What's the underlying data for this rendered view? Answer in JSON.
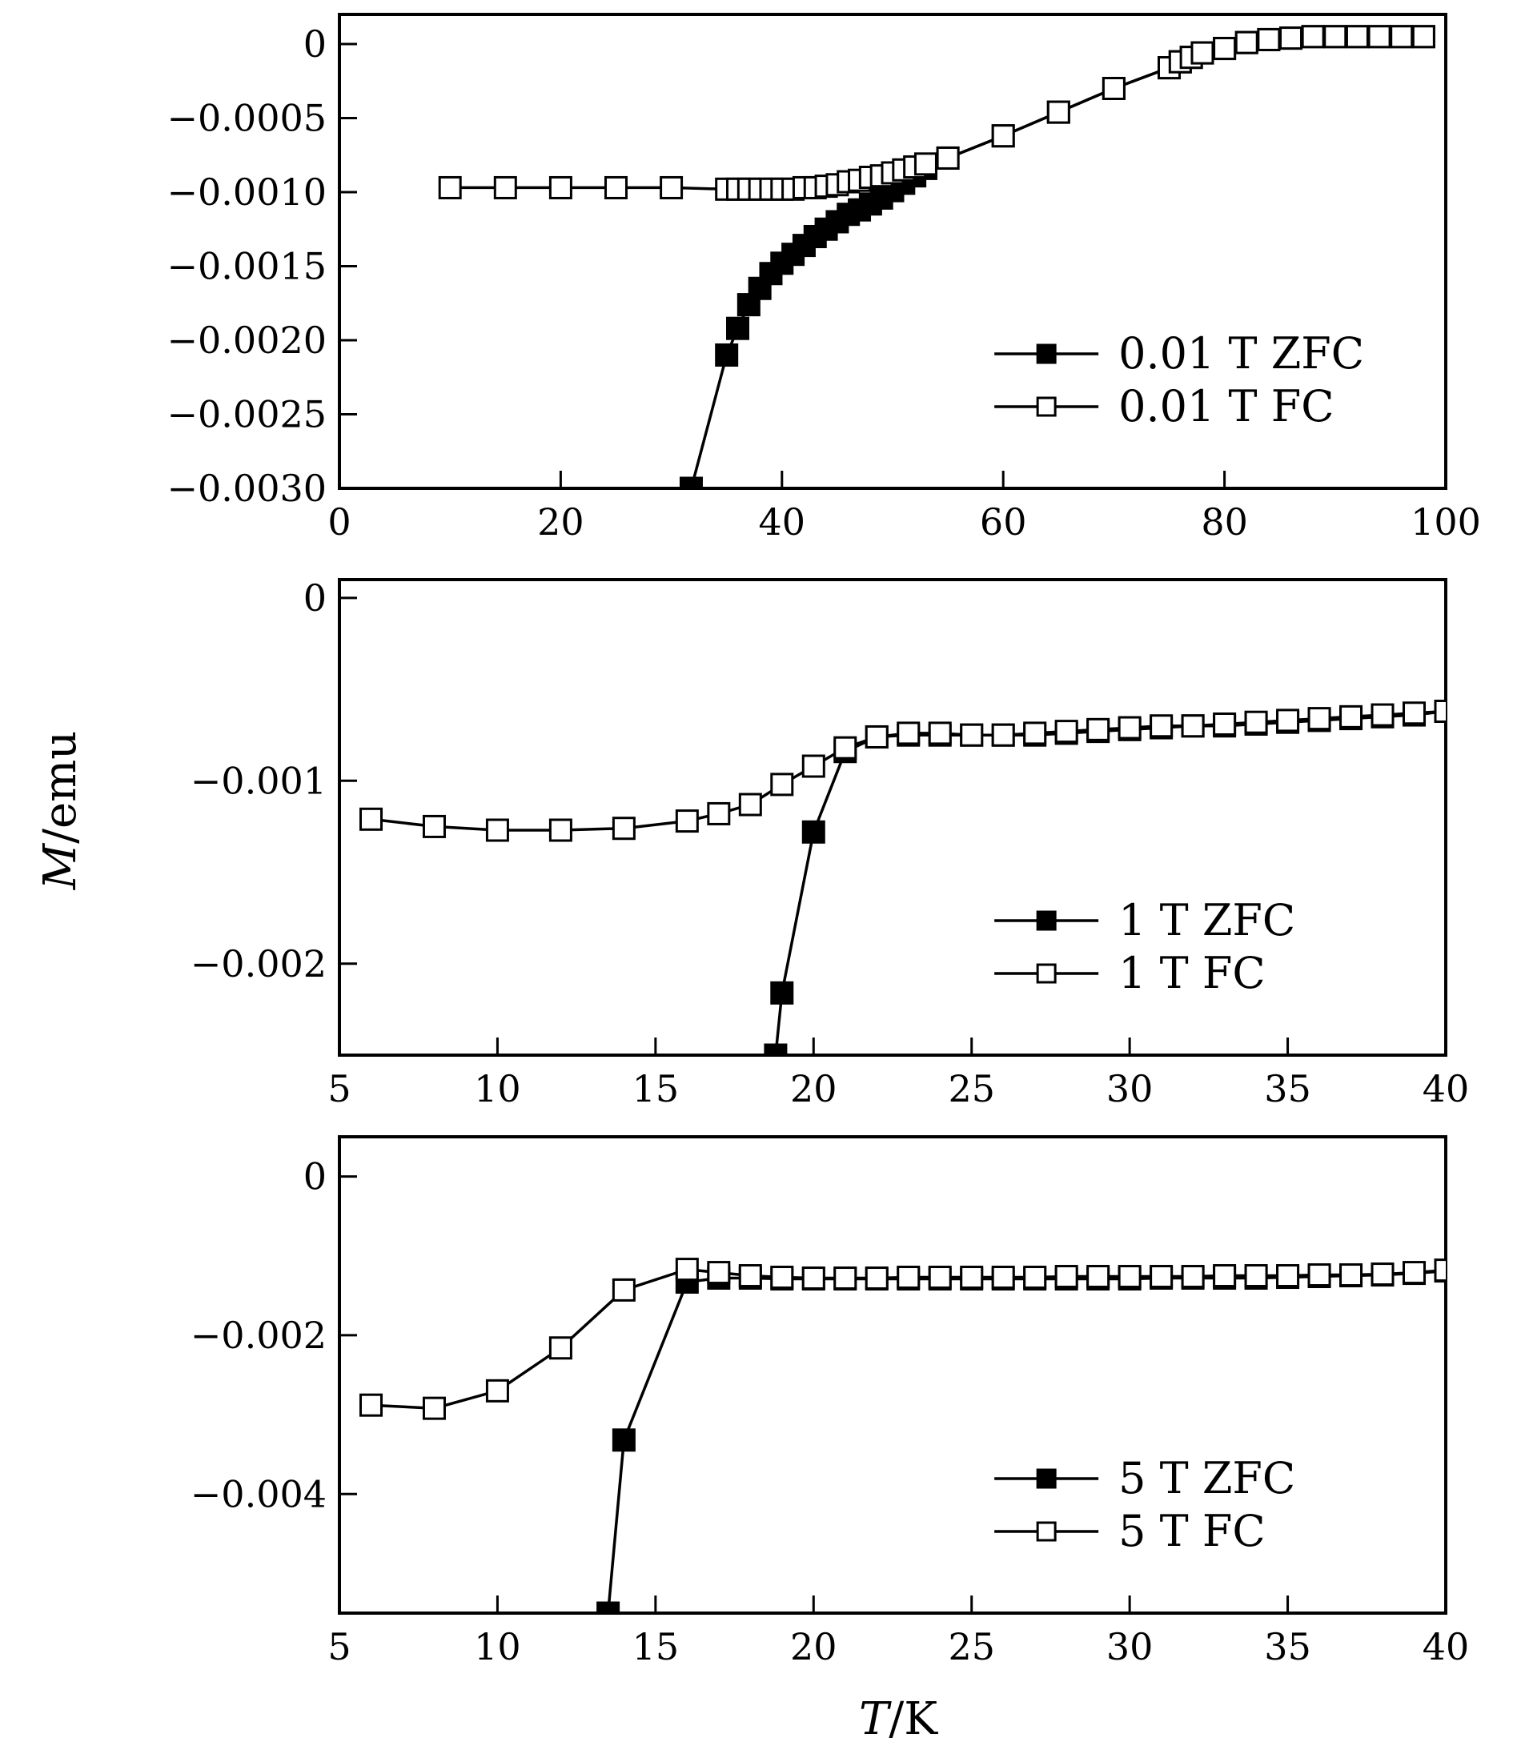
{
  "figure": {
    "xlabel": "T/K",
    "ylabel": "M/emu",
    "colors": {
      "line": "#000000",
      "zfc_marker": "#000000",
      "fc_marker": "#ffffff",
      "background": "#ffffff"
    }
  },
  "chart_data": [
    {
      "type": "line",
      "title": "",
      "xlim": [
        0,
        100
      ],
      "ylim": [
        -0.003,
        0.0002
      ],
      "xticks": [
        0,
        20,
        40,
        60,
        80,
        100
      ],
      "xtick_labels": [
        "0",
        "20",
        "40",
        "60",
        "80",
        "100"
      ],
      "yticks": [
        0,
        -0.0005,
        -0.001,
        -0.0015,
        -0.002,
        -0.0025,
        -0.003
      ],
      "ytick_labels": [
        "0",
        "−0.0005",
        "−0.0010",
        "−0.0015",
        "−0.0020",
        "−0.0025",
        "−0.0030"
      ],
      "legend_position": "lower-right",
      "grid": false,
      "series": [
        {
          "name": "0.01 T ZFC",
          "marker": "filled-square",
          "x": [
            31.8,
            35,
            36,
            37,
            38,
            39,
            40,
            41,
            42,
            43,
            44,
            45,
            46,
            47,
            48,
            49,
            50,
            51,
            52,
            53,
            55,
            60,
            65,
            70,
            75,
            76,
            77,
            78,
            80,
            82,
            84,
            86,
            88,
            90,
            92,
            94,
            96,
            98
          ],
          "y": [
            -0.003,
            -0.0021,
            -0.00192,
            -0.00176,
            -0.00165,
            -0.00155,
            -0.00148,
            -0.00142,
            -0.00136,
            -0.0013,
            -0.00125,
            -0.0012,
            -0.00115,
            -0.00112,
            -0.00108,
            -0.00104,
            -0.00099,
            -0.00094,
            -0.00089,
            -0.00084,
            -0.00077,
            -0.00062,
            -0.00046,
            -0.0003,
            -0.00016,
            -0.00012,
            -9e-05,
            -6e-05,
            -3e-05,
            1e-05,
            3e-05,
            4e-05,
            5e-05,
            5e-05,
            5e-05,
            5e-05,
            5e-05,
            5e-05
          ]
        },
        {
          "name": "0.01 T FC",
          "marker": "open-square",
          "x": [
            10,
            15,
            20,
            25,
            30,
            35,
            36,
            37,
            38,
            39,
            40,
            41,
            42,
            43,
            44,
            45,
            46,
            47,
            48,
            49,
            50,
            51,
            52,
            53,
            55,
            60,
            65,
            70,
            75,
            76,
            77,
            78,
            80,
            82,
            84,
            86,
            88,
            90,
            92,
            94,
            96,
            98
          ],
          "y": [
            -0.00097,
            -0.00097,
            -0.00097,
            -0.00097,
            -0.00097,
            -0.00098,
            -0.00098,
            -0.00098,
            -0.00098,
            -0.00098,
            -0.00098,
            -0.00098,
            -0.00097,
            -0.00097,
            -0.00096,
            -0.00095,
            -0.00093,
            -0.00092,
            -0.0009,
            -0.00089,
            -0.00087,
            -0.00085,
            -0.00083,
            -0.00081,
            -0.00077,
            -0.00062,
            -0.00046,
            -0.0003,
            -0.00016,
            -0.00012,
            -9e-05,
            -6e-05,
            -3e-05,
            1e-05,
            3e-05,
            4e-05,
            5e-05,
            5e-05,
            5e-05,
            5e-05,
            5e-05,
            5e-05
          ]
        }
      ]
    },
    {
      "type": "line",
      "title": "",
      "xlim": [
        5,
        40
      ],
      "ylim": [
        -0.0025,
        0.0001
      ],
      "xticks": [
        5,
        10,
        15,
        20,
        25,
        30,
        35,
        40
      ],
      "xtick_labels": [
        "5",
        "10",
        "15",
        "20",
        "25",
        "30",
        "35",
        "40"
      ],
      "yticks": [
        0,
        -0.001,
        -0.002
      ],
      "ytick_labels": [
        "0",
        "−0.001",
        "−0.002"
      ],
      "legend_position": "lower-right",
      "grid": false,
      "series": [
        {
          "name": "1 T ZFC",
          "marker": "filled-square",
          "x": [
            18.8,
            19,
            20,
            21,
            22,
            23,
            24,
            25,
            26,
            27,
            28,
            29,
            30,
            31,
            32,
            33,
            34,
            35,
            36,
            37,
            38,
            39,
            40
          ],
          "y": [
            -0.0025,
            -0.00216,
            -0.00128,
            -0.00084,
            -0.00076,
            -0.00075,
            -0.00075,
            -0.00075,
            -0.00075,
            -0.00075,
            -0.00074,
            -0.00073,
            -0.00072,
            -0.00071,
            -0.0007,
            -0.0007,
            -0.00069,
            -0.00068,
            -0.00067,
            -0.00066,
            -0.00065,
            -0.00064,
            -0.00062
          ]
        },
        {
          "name": "1 T FC",
          "marker": "open-square",
          "x": [
            6,
            8,
            10,
            12,
            14,
            16,
            17,
            18,
            19,
            20,
            21,
            22,
            23,
            24,
            25,
            26,
            27,
            28,
            29,
            30,
            31,
            32,
            33,
            34,
            35,
            36,
            37,
            38,
            39,
            40
          ],
          "y": [
            -0.00121,
            -0.00125,
            -0.00127,
            -0.00127,
            -0.00126,
            -0.00122,
            -0.00118,
            -0.00113,
            -0.00102,
            -0.00092,
            -0.00082,
            -0.00076,
            -0.00074,
            -0.00074,
            -0.00075,
            -0.00075,
            -0.00074,
            -0.00073,
            -0.00072,
            -0.00071,
            -0.0007,
            -0.0007,
            -0.00069,
            -0.00068,
            -0.00067,
            -0.00066,
            -0.00065,
            -0.00064,
            -0.00063,
            -0.00062
          ]
        }
      ]
    },
    {
      "type": "line",
      "title": "",
      "xlim": [
        5,
        40
      ],
      "ylim": [
        -0.0055,
        0.0005
      ],
      "xticks": [
        5,
        10,
        15,
        20,
        25,
        30,
        35,
        40
      ],
      "xtick_labels": [
        "5",
        "10",
        "15",
        "20",
        "25",
        "30",
        "35",
        "40"
      ],
      "yticks": [
        0,
        -0.002,
        -0.004
      ],
      "ytick_labels": [
        "0",
        "−0.002",
        "−0.004"
      ],
      "legend_position": "lower-right",
      "grid": false,
      "series": [
        {
          "name": "5 T ZFC",
          "marker": "filled-square",
          "x": [
            13.5,
            14,
            16,
            17,
            18,
            19,
            20,
            21,
            22,
            23,
            24,
            25,
            26,
            27,
            28,
            29,
            30,
            31,
            32,
            33,
            34,
            35,
            36,
            37,
            38,
            39,
            40
          ],
          "y": [
            -0.0055,
            -0.00332,
            -0.00133,
            -0.00128,
            -0.00128,
            -0.00129,
            -0.00129,
            -0.00129,
            -0.00129,
            -0.00129,
            -0.00129,
            -0.00129,
            -0.00129,
            -0.00129,
            -0.00129,
            -0.00129,
            -0.00129,
            -0.00128,
            -0.00128,
            -0.00128,
            -0.00128,
            -0.00127,
            -0.00126,
            -0.00125,
            -0.00124,
            -0.00122,
            -0.00119
          ]
        },
        {
          "name": "5 T FC",
          "marker": "open-square",
          "x": [
            6,
            8,
            10,
            12,
            14,
            16,
            17,
            18,
            19,
            20,
            21,
            22,
            23,
            24,
            25,
            26,
            27,
            28,
            29,
            30,
            31,
            32,
            33,
            34,
            35,
            36,
            37,
            38,
            39,
            40
          ],
          "y": [
            -0.00288,
            -0.00292,
            -0.0027,
            -0.00216,
            -0.00143,
            -0.00117,
            -0.00121,
            -0.00125,
            -0.00127,
            -0.00128,
            -0.00128,
            -0.00128,
            -0.00127,
            -0.00127,
            -0.00127,
            -0.00127,
            -0.00127,
            -0.00126,
            -0.00126,
            -0.00126,
            -0.00126,
            -0.00126,
            -0.00125,
            -0.00125,
            -0.00125,
            -0.00124,
            -0.00124,
            -0.00123,
            -0.00121,
            -0.00118
          ]
        }
      ]
    }
  ]
}
